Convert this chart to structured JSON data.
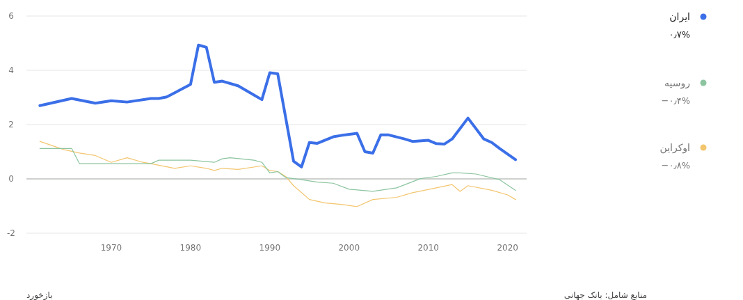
{
  "chart_data": {
    "type": "line",
    "series": [
      {
        "name": "ایران",
        "color": "#3b6fe8",
        "x": [
          1961,
          1965,
          1968,
          1970,
          1972,
          1975,
          1976,
          1977,
          1980,
          1981,
          1982,
          1983,
          1984,
          1986,
          1988,
          1989,
          1990,
          1991,
          1993,
          1994,
          1995,
          1996,
          1998,
          1999,
          2001,
          2002,
          2003,
          2004,
          2005,
          2007,
          2008,
          2010,
          2011,
          2012,
          2013,
          2015,
          2017,
          2018,
          2019,
          2021
        ],
        "values": [
          2.7,
          2.96,
          2.79,
          2.88,
          2.83,
          2.96,
          2.96,
          3.02,
          3.48,
          4.93,
          4.85,
          3.56,
          3.6,
          3.43,
          3.09,
          2.92,
          3.91,
          3.87,
          0.65,
          0.44,
          1.34,
          1.31,
          1.55,
          1.6,
          1.68,
          1.0,
          0.95,
          1.62,
          1.62,
          1.47,
          1.38,
          1.42,
          1.3,
          1.28,
          1.47,
          2.24,
          1.47,
          1.34,
          1.12,
          0.71
        ]
      },
      {
        "name": "روسیه",
        "color": "#8cc49f",
        "x": [
          1961,
          1965,
          1966,
          1975,
          1976,
          1980,
          1983,
          1984,
          1985,
          1988,
          1989,
          1990,
          1991,
          1992,
          1994,
          1996,
          1998,
          2000,
          2003,
          2006,
          2009,
          2011,
          2013,
          2014,
          2016,
          2019,
          2021
        ],
        "values": [
          1.12,
          1.12,
          0.56,
          0.56,
          0.69,
          0.69,
          0.61,
          0.74,
          0.78,
          0.69,
          0.61,
          0.22,
          0.27,
          0.05,
          -0.03,
          -0.12,
          -0.16,
          -0.38,
          -0.46,
          -0.33,
          0.01,
          0.09,
          0.22,
          0.22,
          0.18,
          -0.03,
          -0.42
        ]
      },
      {
        "name": "اوکراین",
        "color": "#f3c56e",
        "x": [
          1961,
          1964,
          1966,
          1968,
          1970,
          1972,
          1974,
          1975,
          1978,
          1980,
          1982,
          1983,
          1984,
          1986,
          1989,
          1990,
          1991,
          1992,
          1993,
          1995,
          1997,
          1999,
          2001,
          2003,
          2006,
          2008,
          2011,
          2013,
          2014,
          2015,
          2018,
          2020,
          2021
        ],
        "values": [
          1.38,
          1.08,
          0.95,
          0.86,
          0.61,
          0.78,
          0.61,
          0.56,
          0.39,
          0.48,
          0.39,
          0.31,
          0.39,
          0.35,
          0.48,
          0.31,
          0.27,
          0.09,
          -0.25,
          -0.76,
          -0.89,
          -0.94,
          -1.02,
          -0.76,
          -0.68,
          -0.51,
          -0.33,
          -0.21,
          -0.46,
          -0.25,
          -0.42,
          -0.59,
          -0.76
        ]
      }
    ],
    "xlim": [
      1959.3,
      2022.4
    ],
    "ylim": [
      -2,
      6
    ],
    "xticks": [
      1970,
      1980,
      1990,
      2000,
      2010,
      2020
    ],
    "yticks": [
      -2,
      0,
      2,
      4,
      6
    ],
    "grid": "y",
    "legend": "right",
    "marker": "none",
    "line_style": "solid",
    "ref_lines": [
      {
        "axis": "y",
        "value": 0,
        "color": "#a8b0a8"
      }
    ],
    "annotations": [
      "۰٫۷%",
      "−۰٫۴%",
      "−۰٫۸%",
      "منابع شامل: بانک جهانی",
      "بازخورد"
    ]
  }
}
